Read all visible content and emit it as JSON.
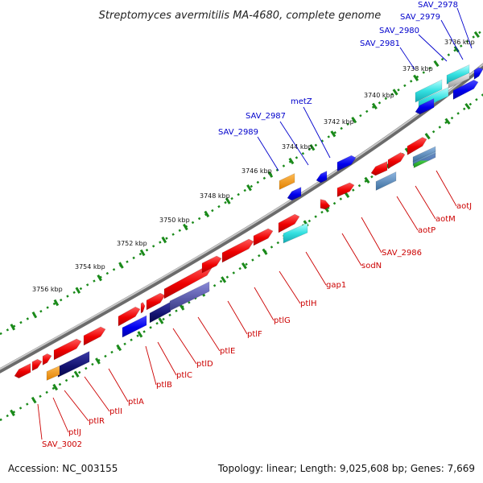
{
  "map": {
    "title": "Streptomyces avermitilis MA-4680, complete genome",
    "accession": "Accession: NC_003155",
    "summary": "Topology: linear; Length: 9,025,608 bp; Genes: 7,669"
  },
  "colors": {
    "ruler": "#1a8a1a",
    "backbone": "#6b6b6b",
    "upper_strand_label": "#0000cc",
    "lower_strand_label": "#cc0000",
    "leader_upper": "#0000cc",
    "leader_lower": "#cc0000"
  },
  "kbp_labels": [
    "3736 kbp",
    "3738 kbp",
    "3740 kbp",
    "3742 kbp",
    "3744 kbp",
    "3746 kbp",
    "3748 kbp",
    "3750 kbp",
    "3752 kbp",
    "3754 kbp",
    "3756 kbp"
  ],
  "upper_gene_labels": [
    "SAV_2978",
    "SAV_2979",
    "SAV_2980",
    "SAV_2981",
    "metZ",
    "SAV_2987",
    "SAV_2989"
  ],
  "lower_gene_labels": [
    "aotJ",
    "aotM",
    "aotP",
    "SAV_2986",
    "sodN",
    "gap1",
    "ptlH",
    "ptlG",
    "ptlF",
    "ptlE",
    "ptlD",
    "ptlC",
    "ptlB",
    "ptlA",
    "ptlI",
    "ptlR",
    "ptlJ",
    "SAV_3002"
  ]
}
